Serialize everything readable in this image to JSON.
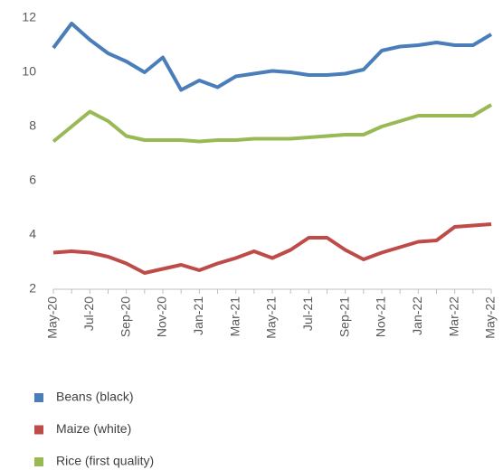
{
  "chart_data": {
    "type": "line",
    "categories": [
      "May-20",
      null,
      "Jul-20",
      null,
      "Sep-20",
      null,
      "Nov-20",
      null,
      "Jan-21",
      null,
      "Mar-21",
      null,
      "May-21",
      null,
      "Jul-21",
      null,
      "Sep-21",
      null,
      "Nov-21",
      null,
      "Jan-22",
      null,
      "Mar-22",
      null,
      "May-22"
    ],
    "series": [
      {
        "name": "Beans (black)",
        "color": "#4a7ebb",
        "values": [
          10.9,
          11.8,
          11.2,
          10.7,
          10.4,
          10.0,
          10.55,
          9.35,
          9.7,
          9.45,
          9.85,
          9.95,
          10.05,
          10.0,
          9.9,
          9.9,
          9.95,
          10.1,
          10.8,
          10.95,
          11.0,
          11.1,
          11.0,
          11.0,
          11.4
        ]
      },
      {
        "name": "Maize (white)",
        "color": "#be4b48",
        "values": [
          3.35,
          3.4,
          3.35,
          3.2,
          2.95,
          2.6,
          2.75,
          2.9,
          2.7,
          2.95,
          3.15,
          3.4,
          3.15,
          3.45,
          3.9,
          3.9,
          3.45,
          3.1,
          3.35,
          3.55,
          3.75,
          3.8,
          4.3,
          4.35,
          4.4
        ]
      },
      {
        "name": "Rice (first quality)",
        "color": "#98b954",
        "values": [
          7.45,
          8.0,
          8.55,
          8.2,
          7.65,
          7.5,
          7.5,
          7.5,
          7.45,
          7.5,
          7.5,
          7.55,
          7.55,
          7.55,
          7.6,
          7.65,
          7.7,
          7.7,
          8.0,
          8.2,
          8.4,
          8.4,
          8.4,
          8.4,
          8.8
        ]
      }
    ],
    "ylim": [
      2,
      12
    ],
    "yticks": [
      2,
      4,
      6,
      8,
      10,
      12
    ],
    "grid": false,
    "legend": "bottom"
  }
}
